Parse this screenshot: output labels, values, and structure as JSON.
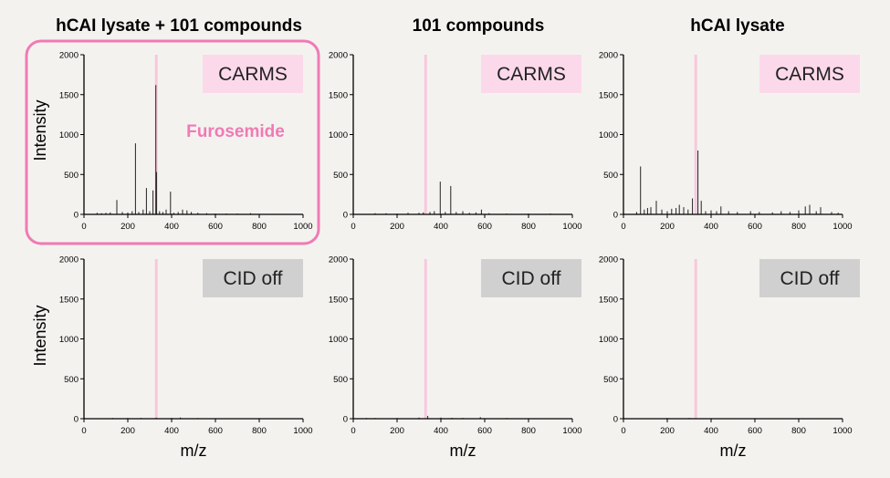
{
  "column_titles": [
    "hCAI lysate + 101 compounds",
    "101 compounds",
    "hCAI lysate"
  ],
  "row_labels": [
    "CARMS",
    "CID off"
  ],
  "highlight_label": "Furosemide",
  "ylabel": "Intensity",
  "xlabel": "m/z",
  "colors": {
    "background": "#f4f2ef",
    "marker_line": "#f8c8dc",
    "highlight_border": "#f07ab5",
    "highlight_text": "#f07ab5",
    "carms_badge": "#fcd9ea",
    "cid_badge": "#d0d0d0",
    "spectrum": "#222222"
  },
  "chart_data": [
    {
      "type": "bar",
      "panel": "hCAI lysate + 101 compounds / CARMS",
      "xlim": [
        0,
        1000
      ],
      "ylim": [
        0,
        2000
      ],
      "xticks": [
        0,
        200,
        400,
        600,
        800,
        1000
      ],
      "yticks": [
        0,
        500,
        1000,
        1500,
        2000
      ],
      "marker_mz": 330,
      "peaks": [
        [
          60,
          20
        ],
        [
          80,
          15
        ],
        [
          100,
          20
        ],
        [
          120,
          25
        ],
        [
          150,
          180
        ],
        [
          175,
          30
        ],
        [
          200,
          25
        ],
        [
          220,
          40
        ],
        [
          235,
          890
        ],
        [
          250,
          30
        ],
        [
          270,
          60
        ],
        [
          285,
          330
        ],
        [
          300,
          40
        ],
        [
          315,
          300
        ],
        [
          328,
          1620
        ],
        [
          331,
          530
        ],
        [
          345,
          40
        ],
        [
          360,
          30
        ],
        [
          375,
          60
        ],
        [
          395,
          285
        ],
        [
          410,
          20
        ],
        [
          430,
          30
        ],
        [
          450,
          60
        ],
        [
          470,
          50
        ],
        [
          490,
          30
        ],
        [
          520,
          20
        ],
        [
          560,
          15
        ],
        [
          600,
          10
        ],
        [
          650,
          10
        ],
        [
          700,
          10
        ],
        [
          760,
          15
        ]
      ]
    },
    {
      "type": "bar",
      "panel": "101 compounds / CARMS",
      "xlim": [
        0,
        1000
      ],
      "ylim": [
        0,
        2000
      ],
      "xticks": [
        0,
        200,
        400,
        600,
        800,
        1000
      ],
      "yticks": [
        0,
        500,
        1000,
        1500,
        2000
      ],
      "marker_mz": 330,
      "peaks": [
        [
          100,
          15
        ],
        [
          150,
          15
        ],
        [
          200,
          10
        ],
        [
          250,
          20
        ],
        [
          300,
          20
        ],
        [
          320,
          25
        ],
        [
          350,
          30
        ],
        [
          370,
          40
        ],
        [
          397,
          410
        ],
        [
          420,
          30
        ],
        [
          445,
          355
        ],
        [
          470,
          30
        ],
        [
          500,
          40
        ],
        [
          530,
          20
        ],
        [
          560,
          25
        ],
        [
          585,
          60
        ],
        [
          620,
          15
        ],
        [
          700,
          10
        ],
        [
          800,
          10
        ],
        [
          900,
          10
        ]
      ]
    },
    {
      "type": "bar",
      "panel": "hCAI lysate / CARMS",
      "xlim": [
        0,
        1000
      ],
      "ylim": [
        0,
        2000
      ],
      "xticks": [
        0,
        200,
        400,
        600,
        800,
        1000
      ],
      "yticks": [
        0,
        500,
        1000,
        1500,
        2000
      ],
      "marker_mz": 330,
      "peaks": [
        [
          60,
          30
        ],
        [
          78,
          600
        ],
        [
          95,
          60
        ],
        [
          110,
          80
        ],
        [
          125,
          90
        ],
        [
          150,
          170
        ],
        [
          175,
          60
        ],
        [
          200,
          40
        ],
        [
          220,
          70
        ],
        [
          240,
          80
        ],
        [
          255,
          120
        ],
        [
          275,
          90
        ],
        [
          295,
          60
        ],
        [
          315,
          200
        ],
        [
          340,
          800
        ],
        [
          355,
          170
        ],
        [
          375,
          40
        ],
        [
          400,
          50
        ],
        [
          425,
          40
        ],
        [
          445,
          100
        ],
        [
          480,
          40
        ],
        [
          520,
          30
        ],
        [
          580,
          40
        ],
        [
          620,
          30
        ],
        [
          680,
          25
        ],
        [
          720,
          40
        ],
        [
          760,
          30
        ],
        [
          800,
          50
        ],
        [
          830,
          100
        ],
        [
          850,
          120
        ],
        [
          880,
          40
        ],
        [
          900,
          90
        ],
        [
          950,
          30
        ],
        [
          980,
          20
        ]
      ]
    },
    {
      "type": "bar",
      "panel": "hCAI lysate + 101 compounds / CID off",
      "xlim": [
        0,
        1000
      ],
      "ylim": [
        0,
        2000
      ],
      "xticks": [
        0,
        200,
        400,
        600,
        800,
        1000
      ],
      "yticks": [
        0,
        500,
        1000,
        1500,
        2000
      ],
      "marker_mz": 330,
      "peaks": [
        [
          130,
          10
        ],
        [
          200,
          8
        ],
        [
          260,
          10
        ],
        [
          330,
          12
        ],
        [
          400,
          10
        ],
        [
          440,
          15
        ],
        [
          520,
          8
        ],
        [
          600,
          6
        ]
      ]
    },
    {
      "type": "bar",
      "panel": "101 compounds / CID off",
      "xlim": [
        0,
        1000
      ],
      "ylim": [
        0,
        2000
      ],
      "xticks": [
        0,
        200,
        400,
        600,
        800,
        1000
      ],
      "yticks": [
        0,
        500,
        1000,
        1500,
        2000
      ],
      "marker_mz": 330,
      "peaks": [
        [
          60,
          10
        ],
        [
          100,
          8
        ],
        [
          200,
          8
        ],
        [
          300,
          15
        ],
        [
          340,
          35
        ],
        [
          400,
          15
        ],
        [
          450,
          12
        ],
        [
          500,
          10
        ],
        [
          580,
          20
        ],
        [
          700,
          8
        ],
        [
          800,
          6
        ]
      ]
    },
    {
      "type": "bar",
      "panel": "hCAI lysate / CID off",
      "xlim": [
        0,
        1000
      ],
      "ylim": [
        0,
        2000
      ],
      "xticks": [
        0,
        200,
        400,
        600,
        800,
        1000
      ],
      "yticks": [
        0,
        500,
        1000,
        1500,
        2000
      ],
      "marker_mz": 330,
      "peaks": [
        [
          100,
          6
        ],
        [
          200,
          8
        ],
        [
          300,
          8
        ],
        [
          400,
          6
        ],
        [
          500,
          6
        ],
        [
          600,
          6
        ],
        [
          700,
          6
        ]
      ]
    }
  ]
}
